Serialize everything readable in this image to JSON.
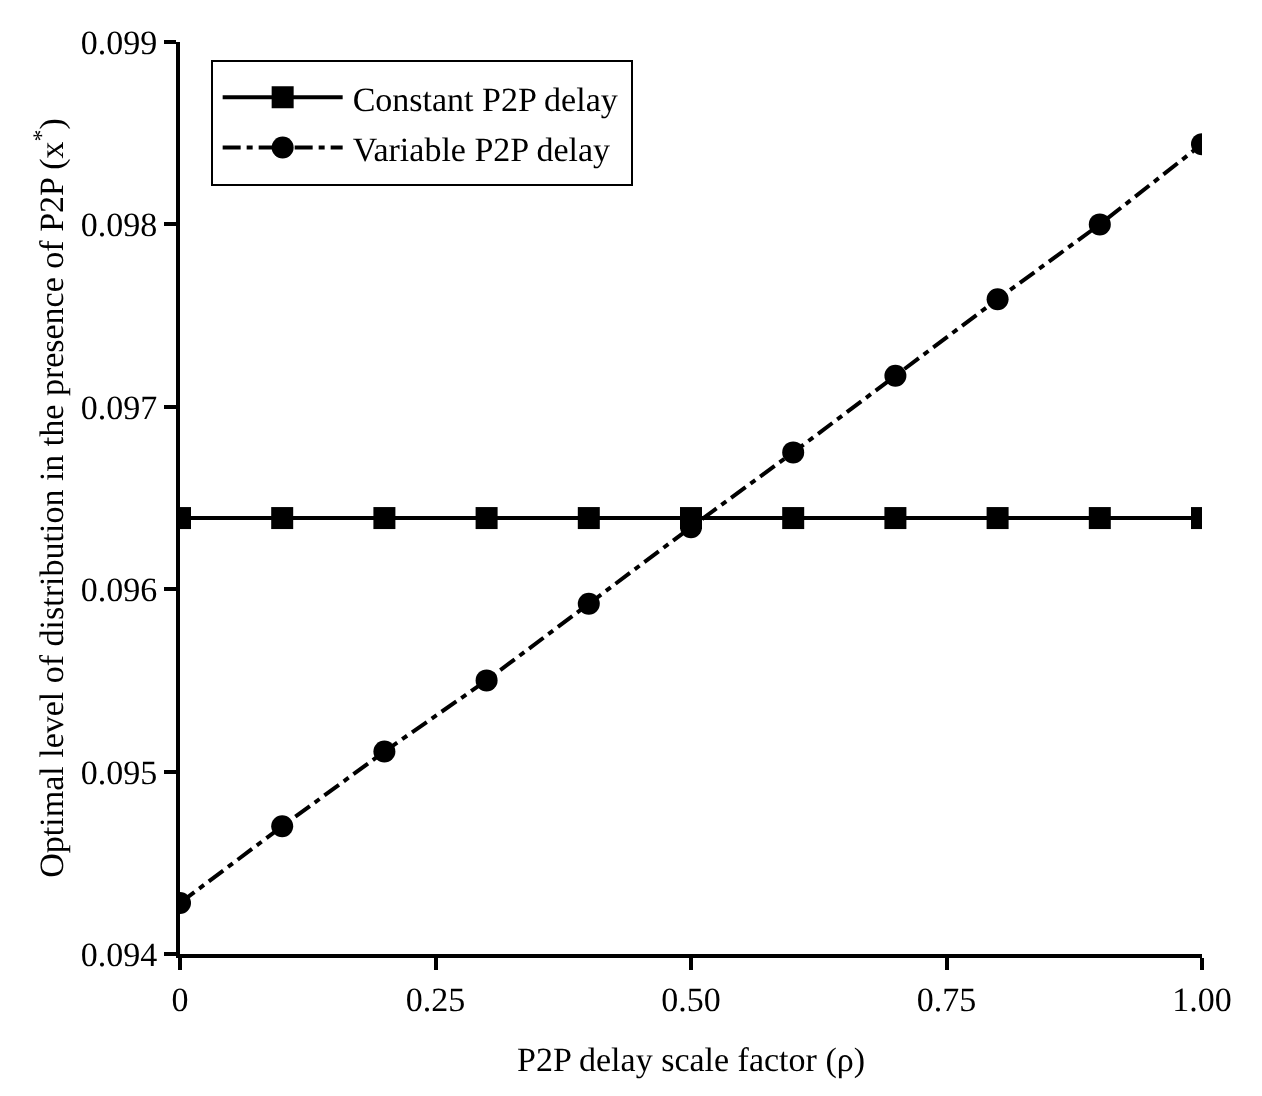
{
  "chart_data": {
    "type": "line",
    "xlabel": "P2P delay scale factor (ρ)",
    "ylabel": "Optimal level of distribution in the presence of P2P (x$^{*}$)",
    "x": [
      0,
      0.1,
      0.2,
      0.3,
      0.4,
      0.5,
      0.6,
      0.7,
      0.8,
      0.9,
      1.0
    ],
    "series": [
      {
        "name": "Constant P2P delay",
        "color": "#000000",
        "marker": "square",
        "line_style": "solid",
        "values": [
          0.09639,
          0.09639,
          0.09639,
          0.09639,
          0.09639,
          0.09639,
          0.09639,
          0.09639,
          0.09639,
          0.09639,
          0.09639
        ]
      },
      {
        "name": "Variable P2P delay",
        "color": "#000000",
        "marker": "circle",
        "line_style": "dashdot",
        "values": [
          0.09428,
          0.0947,
          0.09511,
          0.0955,
          0.09592,
          0.09634,
          0.09675,
          0.09717,
          0.09759,
          0.098,
          0.09844
        ]
      }
    ],
    "xlim": [
      0,
      1
    ],
    "xticks": [
      0,
      {
        "value": 0.25,
        "label": "0.25"
      },
      {
        "value": 0.5,
        "label": "0.50"
      },
      {
        "value": 0.75,
        "label": "0.75"
      },
      {
        "value": 1,
        "label": "1.00"
      }
    ],
    "ylim": [
      0.094,
      0.099
    ],
    "yticks": [
      0.094,
      0.095,
      0.096,
      0.097,
      0.098,
      0.099
    ],
    "legend": "top left"
  }
}
